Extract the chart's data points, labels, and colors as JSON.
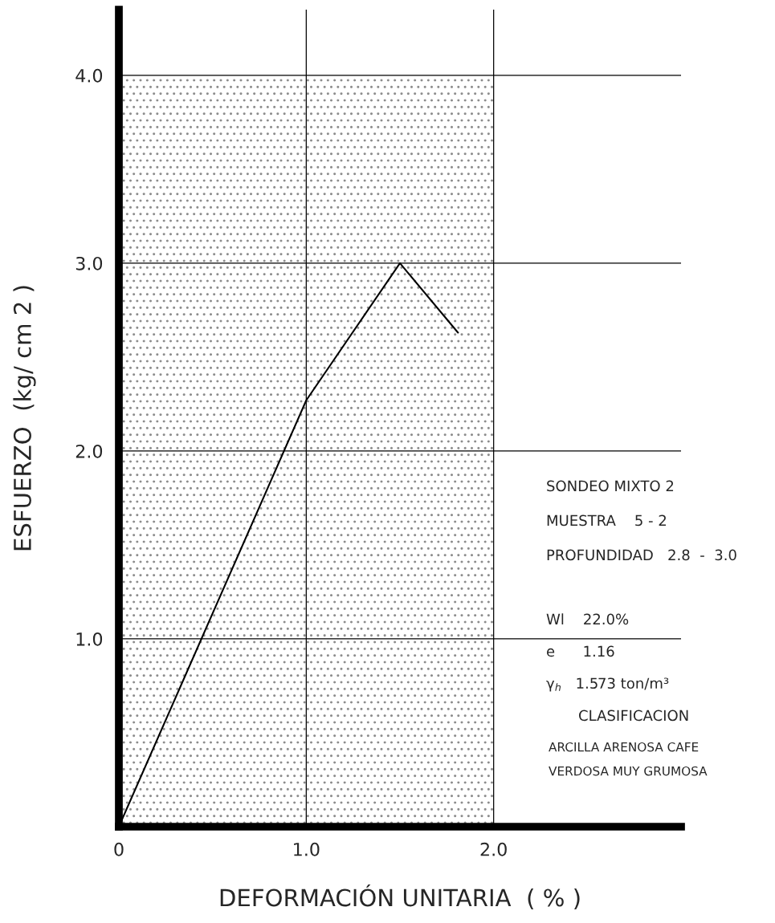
{
  "chart_data": {
    "type": "line",
    "xlabel": "DEFORMACIÓN UNITARIA  ( % )",
    "ylabel": "ESFUERZO  (kg/ cm 2 )",
    "xlim": [
      0,
      3.0
    ],
    "ylim": [
      0,
      4.35
    ],
    "xticks": [
      {
        "value": 0,
        "label": "0"
      },
      {
        "value": 1.0,
        "label": "1.0"
      },
      {
        "value": 2.0,
        "label": "2.0"
      }
    ],
    "yticks": [
      {
        "value": 1.0,
        "label": "1.0"
      },
      {
        "value": 2.0,
        "label": "2.0"
      },
      {
        "value": 3.0,
        "label": "3.0"
      },
      {
        "value": 4.0,
        "label": "4.0"
      }
    ],
    "grid": true,
    "bands": [
      {
        "axis": "x",
        "from": 0,
        "to": 2.0,
        "color": "#8c8c8c"
      }
    ],
    "series": [
      {
        "color": "#000000",
        "x": [
          0,
          1.0,
          1.5,
          1.81
        ],
        "values": [
          0,
          2.27,
          3.0,
          2.63
        ]
      }
    ],
    "annotations": [
      "SONDEO MIXTO 2",
      "MUESTRA    5 - 2",
      "PROFUNDIDAD   2.8  -  3.0",
      "Wl    22.0%",
      "e      1.16",
      "γ$_{h}$   1.573 ton/m³",
      "CLASIFICACION",
      "ARCILLA ARENOSA CAFE",
      "VERDOSA MUY GRUMOSA"
    ]
  }
}
